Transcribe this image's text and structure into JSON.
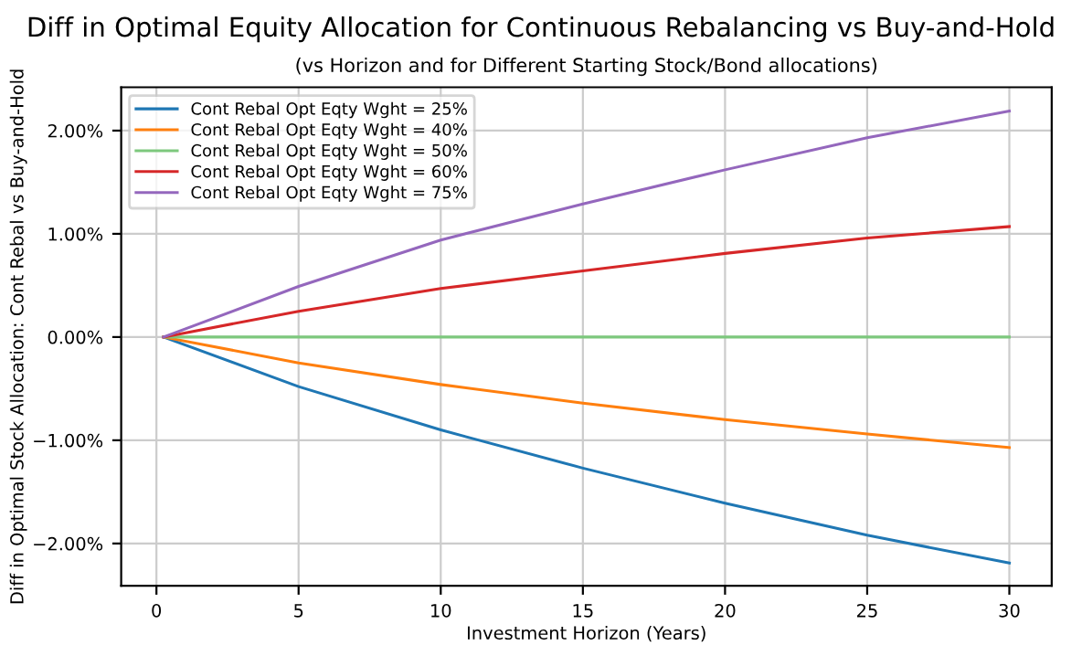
{
  "chart_data": {
    "type": "line",
    "title": "Diff in Optimal Equity Allocation for Continuous Rebalancing vs Buy-and-Hold",
    "subtitle": "(vs Horizon and for Different Starting Stock/Bond allocations)",
    "xlabel": "Investment Horizon (Years)",
    "ylabel": "Diff in Optimal Stock Allocation: Cont Rebal vs Buy-and-Hold",
    "x": [
      0.25,
      5,
      10,
      15,
      20,
      25,
      30
    ],
    "series": [
      {
        "name": "Cont Rebal Opt Eqty Wght = 25%",
        "color": "#1f77b4",
        "values": [
          0,
          -0.48,
          -0.9,
          -1.27,
          -1.61,
          -1.92,
          -2.19
        ]
      },
      {
        "name": "Cont Rebal Opt Eqty Wght = 40%",
        "color": "#ff7f0e",
        "values": [
          0,
          -0.25,
          -0.46,
          -0.64,
          -0.8,
          -0.94,
          -1.07
        ]
      },
      {
        "name": "Cont Rebal Opt Eqty Wght = 50%",
        "color": "#7dc87d",
        "values": [
          0,
          0,
          0,
          0,
          0,
          0,
          0
        ]
      },
      {
        "name": "Cont Rebal Opt Eqty Wght = 60%",
        "color": "#d62728",
        "values": [
          0,
          0.25,
          0.47,
          0.64,
          0.81,
          0.96,
          1.07
        ]
      },
      {
        "name": "Cont Rebal Opt Eqty Wght = 75%",
        "color": "#9467bd",
        "values": [
          0,
          0.49,
          0.94,
          1.29,
          1.62,
          1.93,
          2.19
        ]
      }
    ],
    "xlim": [
      -1.24,
      31.49
    ],
    "xticks": [
      0,
      5,
      10,
      15,
      20,
      25,
      30
    ],
    "ylim": [
      -2.41,
      2.42
    ],
    "yticks": [
      {
        "value": -2,
        "label": "−2.00%"
      },
      {
        "value": -1,
        "label": "−1.00%"
      },
      {
        "value": 0,
        "label": "0.00%"
      },
      {
        "value": 1,
        "label": "1.00%"
      },
      {
        "value": 2,
        "label": "2.00%"
      }
    ],
    "grid": true,
    "legend": "top left",
    "marker": "none",
    "line_style": "solid"
  }
}
